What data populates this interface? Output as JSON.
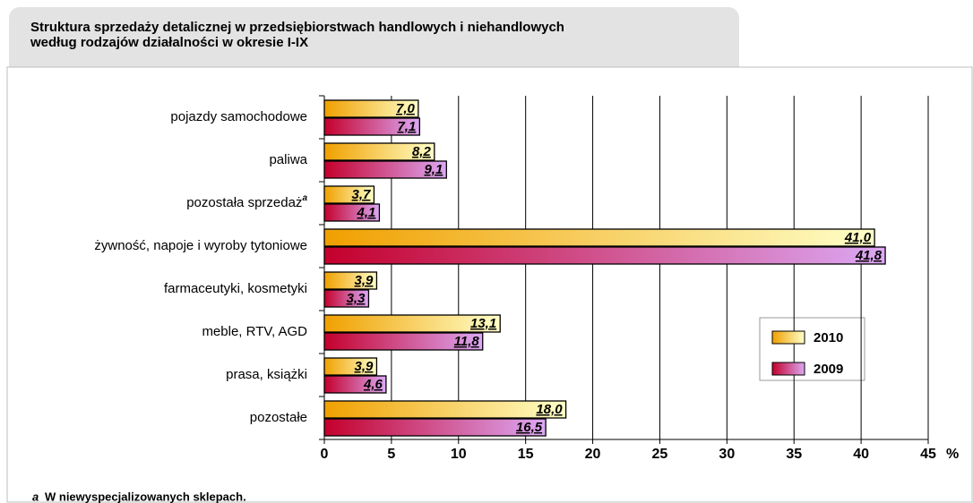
{
  "chart_data": {
    "type": "hbar",
    "title": [
      "Struktura sprzedaży detalicznej w przedsiębiorstwach handlowych i niehandlowych",
      "według rodzajów działalności w okresie I-IX"
    ],
    "categories": [
      "pojazdy samochodowe",
      "paliwa",
      "pozostała sprzedaż",
      "żywność, napoje i wyroby  tytoniowe",
      "farmaceutyki, kosmetyki",
      "meble, RTV, AGD",
      "prasa, książki",
      "pozostałe"
    ],
    "category_notes": [
      null,
      null,
      "a",
      null,
      null,
      null,
      null,
      null
    ],
    "series": [
      {
        "name": "2010",
        "gradient": [
          "#f0a000",
          "#ffffc8"
        ],
        "values": [
          7.0,
          8.2,
          3.7,
          41.0,
          3.9,
          13.1,
          3.9,
          18.0
        ],
        "value_labels": [
          "7,0",
          "8,2",
          "3,7",
          "41,0",
          "3,9",
          "13,1",
          "3,9",
          "18,0"
        ]
      },
      {
        "name": "2009",
        "gradient": [
          "#c4002c",
          "#dca8f4"
        ],
        "values": [
          7.1,
          9.1,
          4.1,
          41.8,
          3.3,
          11.8,
          4.6,
          16.5
        ],
        "value_labels": [
          "7,1",
          "9,1",
          "4,1",
          "41,8",
          "3,3",
          "11,8",
          "4,6",
          "16,5"
        ]
      }
    ],
    "xlim": [
      0,
      45
    ],
    "xticks": [
      0,
      5,
      10,
      15,
      20,
      25,
      30,
      35,
      40,
      45
    ],
    "x_unit": "%",
    "grid": true,
    "footnote": {
      "marker": "a",
      "text": "W niewyspecjalizowanych sklepach."
    }
  }
}
